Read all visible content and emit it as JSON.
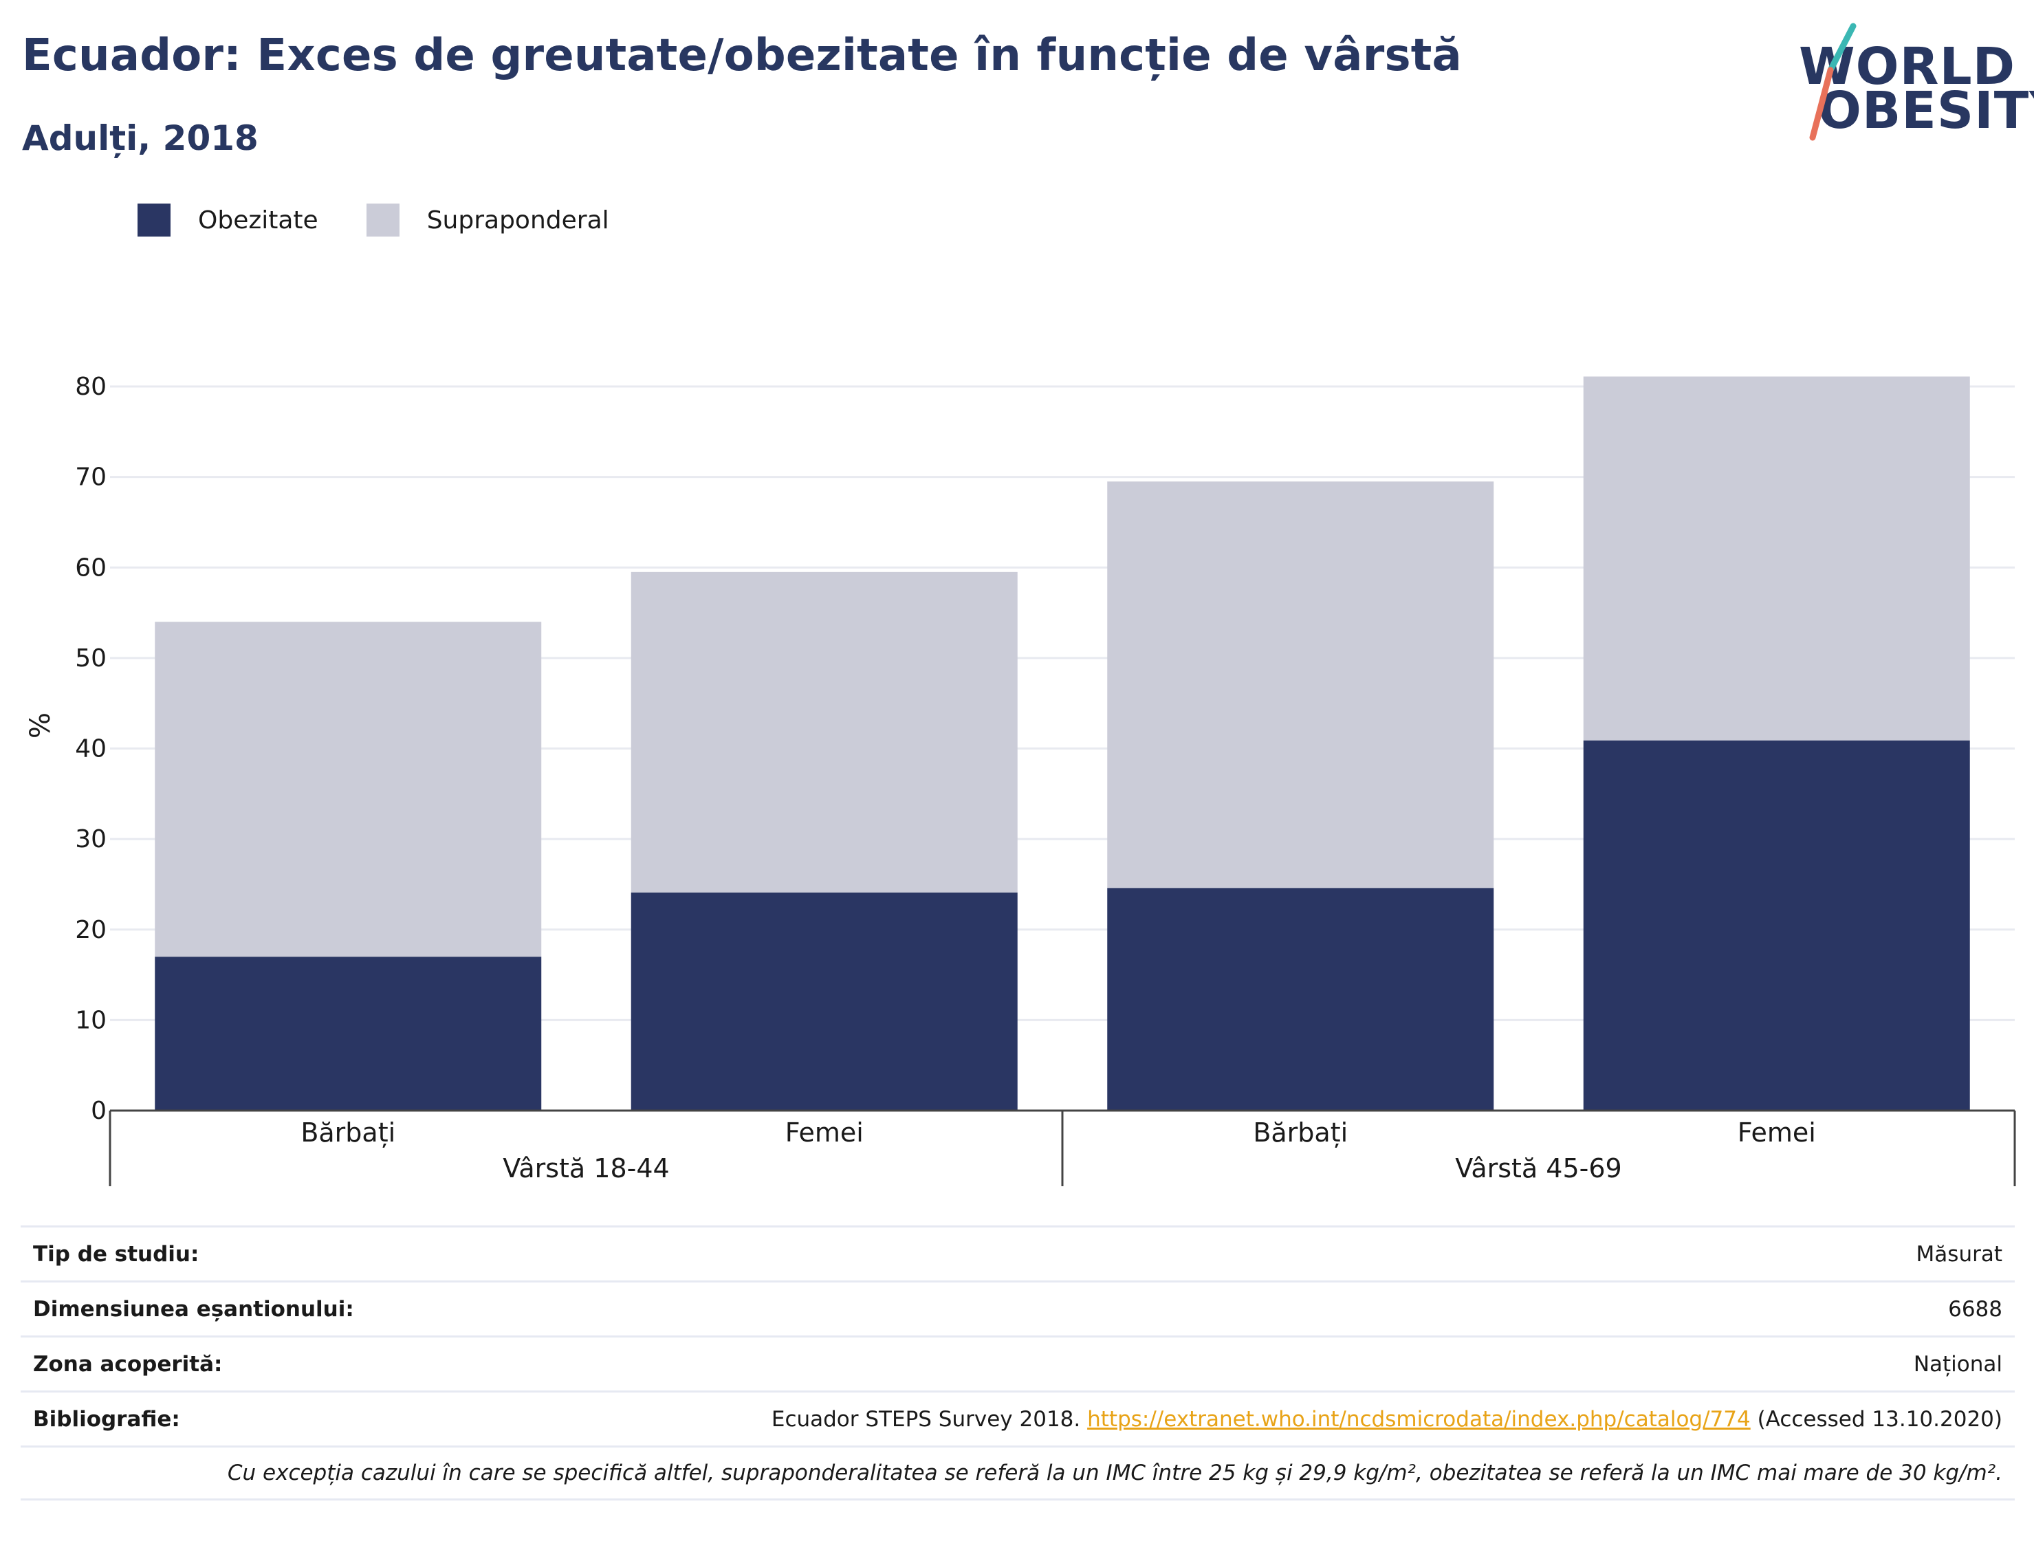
{
  "header": {
    "title": "Ecuador: Exces de greutate/obezitate în funcție de vârstă",
    "subtitle": "Adulți, 2018"
  },
  "logo": {
    "line1": "WORLD",
    "line2": "OBESITY"
  },
  "colors": {
    "obesity": "#2a3663",
    "overweight": "#cbccd8",
    "title": "#283761",
    "link": "#e8a317"
  },
  "legend": [
    {
      "label": "Obezitate",
      "color": "#2a3663"
    },
    {
      "label": "Supraponderal",
      "color": "#cbccd8"
    }
  ],
  "chart_data": {
    "type": "bar",
    "stacked": true,
    "ylabel": "%",
    "ylim": [
      0,
      80
    ],
    "yticks": [
      0,
      10,
      20,
      30,
      40,
      50,
      60,
      70,
      80
    ],
    "grid": true,
    "legend_position": "top-left",
    "categories": [
      "Bărbați",
      "Femei",
      "Bărbați",
      "Femei"
    ],
    "groups": [
      {
        "label": "Vârstă 18-44",
        "span": [
          0,
          1
        ]
      },
      {
        "label": "Vârstă 45-69",
        "span": [
          2,
          3
        ]
      }
    ],
    "series": [
      {
        "name": "Obezitate",
        "values": [
          17.0,
          24.1,
          24.6,
          40.9
        ]
      },
      {
        "name": "Supraponderal",
        "values": [
          37.0,
          35.4,
          44.9,
          40.2
        ]
      }
    ]
  },
  "info": {
    "rows": [
      {
        "key": "Tip de studiu:",
        "value": "Măsurat"
      },
      {
        "key": "Dimensiunea eșantionului:",
        "value": "6688"
      },
      {
        "key": "Zona acoperită:",
        "value": "Național"
      }
    ],
    "bibliography": {
      "key": "Bibliografie:",
      "prefix": "Ecuador STEPS Survey 2018.",
      "link": "https://extranet.who.int/ncdsmicrodata/index.php/catalog/774",
      "suffix": "(Accessed 13.10.2020)"
    },
    "note": "Cu excepția cazului în care se specifică altfel, supraponderalitatea se referă la un IMC între 25 kg și 29,9 kg/m², obezitatea se referă la un IMC mai mare de 30 kg/m²."
  }
}
